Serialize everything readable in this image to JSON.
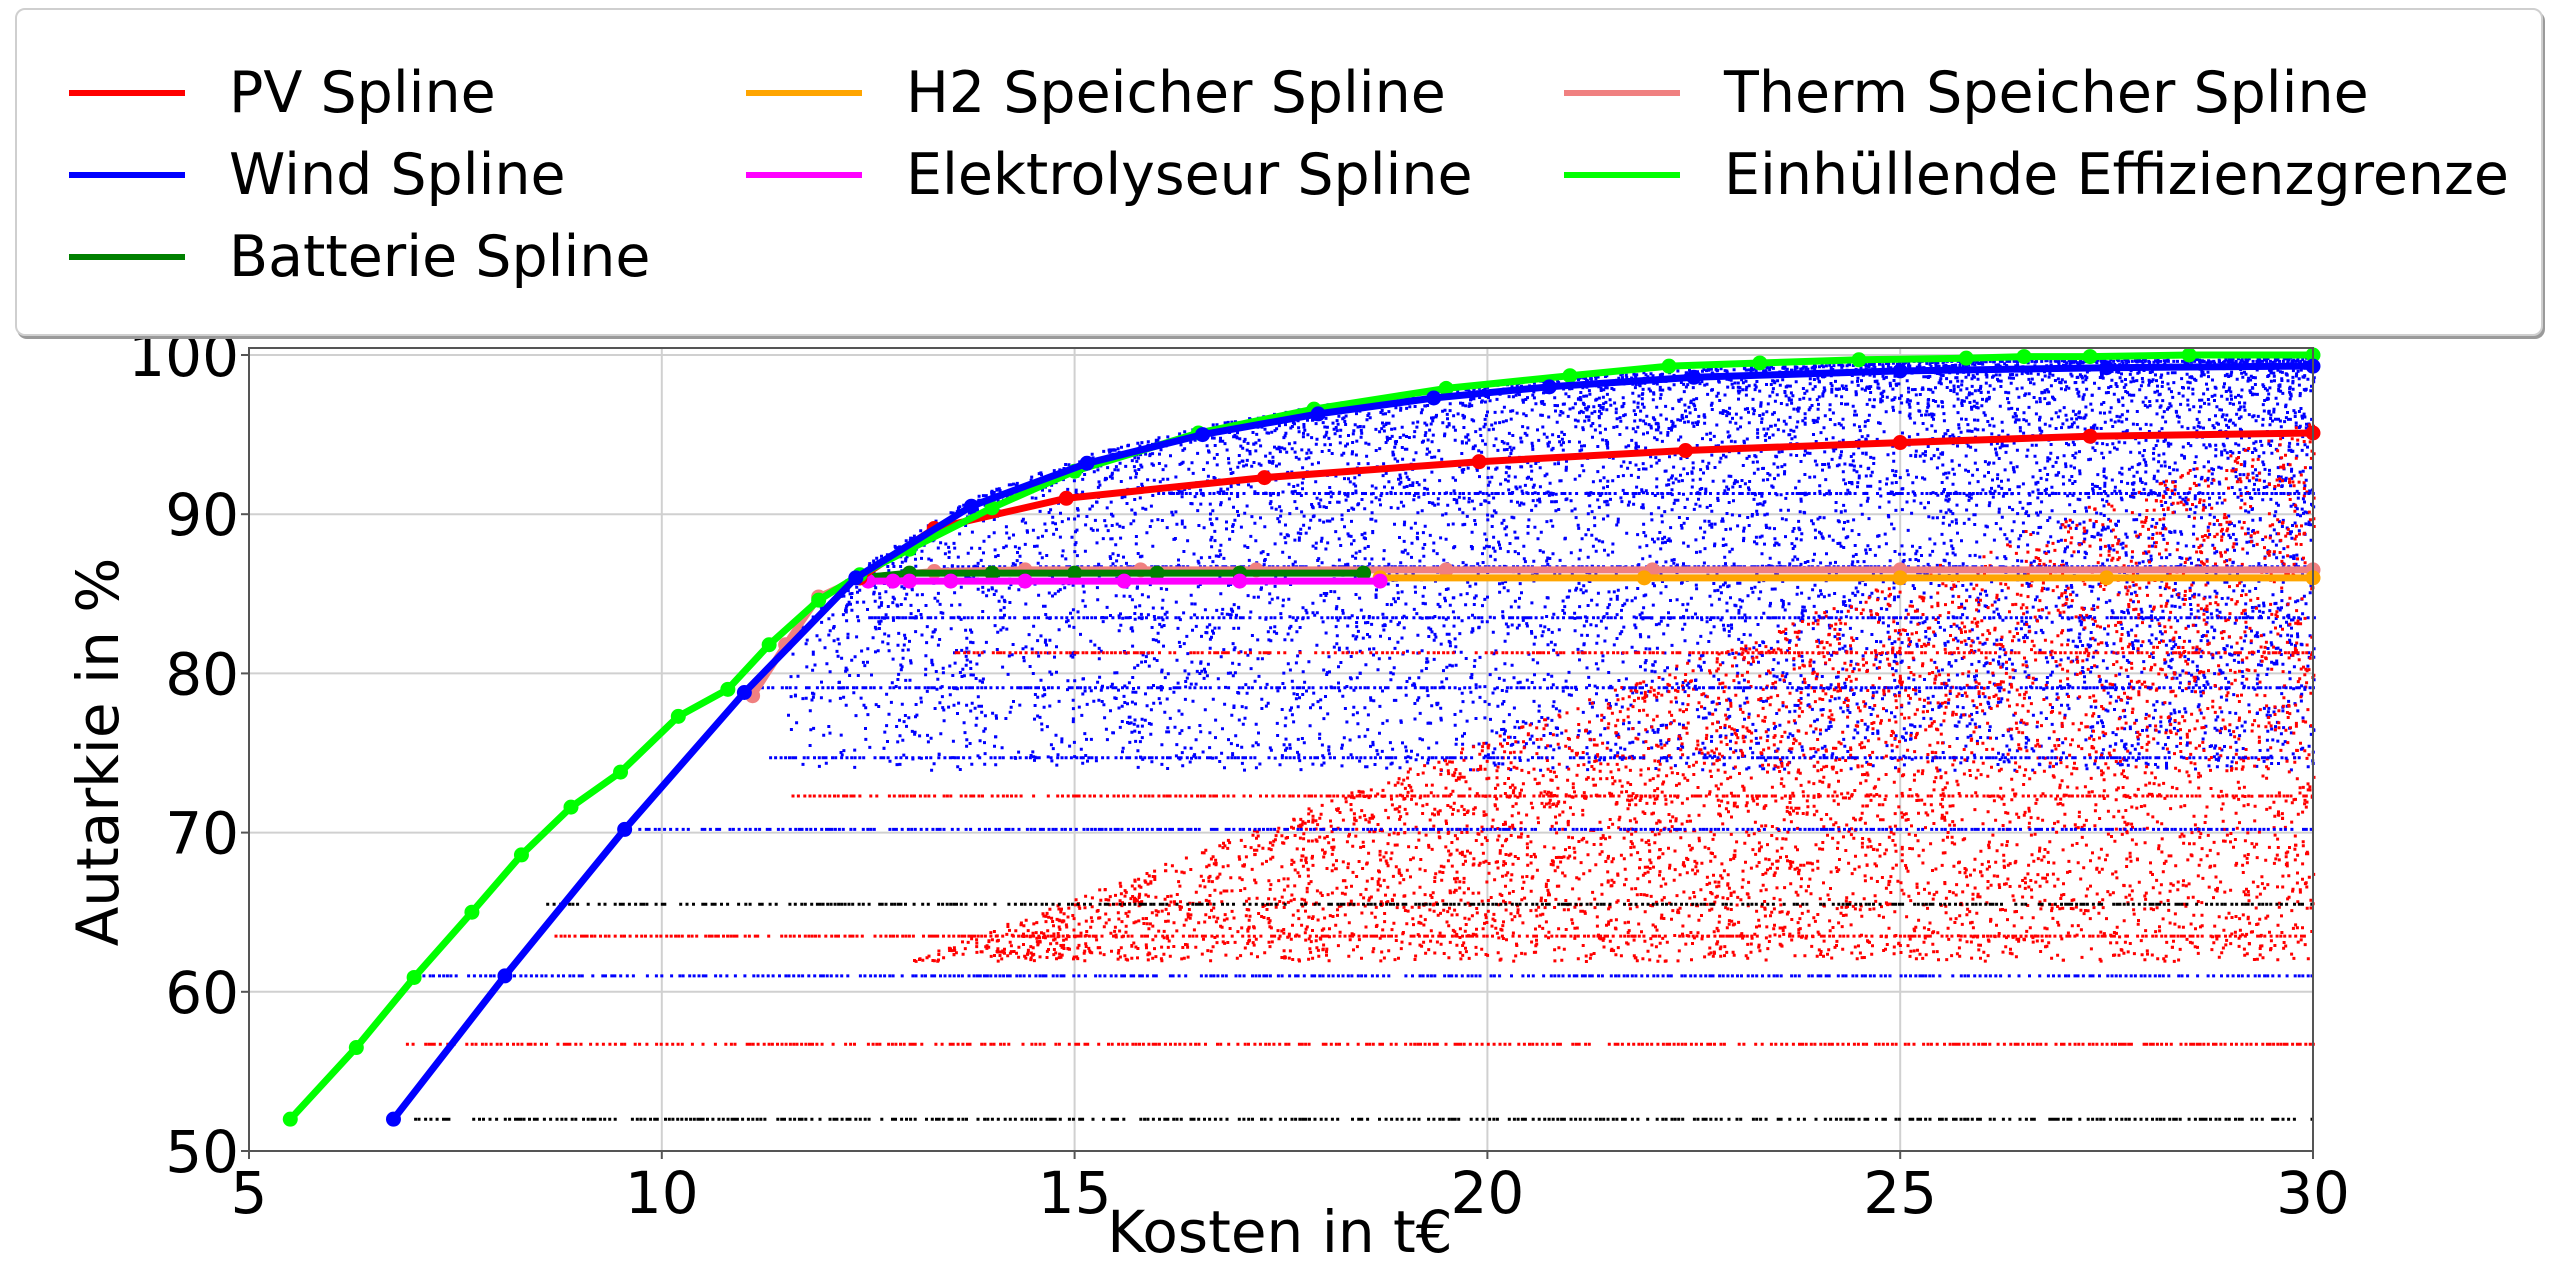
{
  "chart_data": {
    "type": "scatter",
    "title": "",
    "xlabel": "Kosten in t€",
    "ylabel": "Autarkie in %",
    "xlim": [
      5,
      30
    ],
    "ylim": [
      50,
      100
    ],
    "xticks": [
      5,
      10,
      15,
      20,
      25,
      30
    ],
    "yticks": [
      50,
      60,
      70,
      80,
      90,
      100
    ],
    "grid": true,
    "legend": {
      "placement": "top",
      "columns": 3,
      "entries": [
        {
          "label": "PV Spline",
          "color": "#ff0000"
        },
        {
          "label": "Wind Spline",
          "color": "#0000ff"
        },
        {
          "label": "Batterie Spline",
          "color": "#008000"
        },
        {
          "label": "H2 Speicher Spline",
          "color": "#ffa500"
        },
        {
          "label": "Elektrolyseur Spline",
          "color": "#ff00ff"
        },
        {
          "label": "Therm Speicher Spline",
          "color": "#f08080"
        },
        {
          "label": "Einhüllende Effizienzgrenze",
          "color": "#00ff00"
        }
      ]
    },
    "series": [
      {
        "name": "Einhüllende Effizienzgrenze",
        "color": "#00ff00",
        "x": [
          5.5,
          6.3,
          7.0,
          7.7,
          8.3,
          8.9,
          9.5,
          10.2,
          10.8,
          11.3,
          11.9,
          12.4,
          13.0,
          14.0,
          15.0,
          16.5,
          17.9,
          19.5,
          21.0,
          22.2,
          23.3,
          24.5,
          25.8,
          26.5,
          27.3,
          28.5,
          30.0
        ],
        "y": [
          52.0,
          56.5,
          60.9,
          65.0,
          68.6,
          71.6,
          73.8,
          77.3,
          79.0,
          81.8,
          84.6,
          86.2,
          87.8,
          90.4,
          92.7,
          95.1,
          96.6,
          97.9,
          98.7,
          99.3,
          99.5,
          99.7,
          99.8,
          99.9,
          99.9,
          100.0,
          100.0
        ]
      },
      {
        "name": "Wind Spline",
        "color": "#0000ff",
        "x": [
          6.75,
          8.1,
          9.55,
          11.0,
          12.35,
          13.75,
          15.15,
          16.55,
          17.95,
          19.35,
          20.75,
          22.5,
          25.0,
          27.5,
          30.0
        ],
        "y": [
          52.0,
          61.0,
          70.2,
          78.8,
          86.0,
          90.5,
          93.2,
          95.0,
          96.3,
          97.3,
          98.0,
          98.6,
          99.0,
          99.2,
          99.3
        ]
      },
      {
        "name": "PV Spline",
        "color": "#ff0000",
        "x": [
          12.4,
          13.3,
          14.9,
          17.3,
          19.9,
          22.4,
          25.0,
          27.3,
          30.0
        ],
        "y": [
          86.0,
          89.1,
          91.0,
          92.3,
          93.3,
          94.0,
          94.5,
          94.9,
          95.1
        ]
      },
      {
        "name": "Batterie Spline",
        "color": "#008000",
        "x": [
          12.4,
          13.0,
          14.0,
          15.0,
          16.0,
          17.0,
          18.5
        ],
        "y": [
          86.0,
          86.3,
          86.3,
          86.3,
          86.3,
          86.3,
          86.3
        ]
      },
      {
        "name": "H2 Speicher Spline",
        "color": "#ffa500",
        "x": [
          18.7,
          21.9,
          25.0,
          27.5,
          30.0
        ],
        "y": [
          86.0,
          86.0,
          86.0,
          86.0,
          86.0
        ]
      },
      {
        "name": "Elektrolyseur Spline",
        "color": "#ff00ff",
        "x": [
          12.5,
          12.8,
          13.0,
          13.5,
          14.4,
          15.6,
          17.0,
          18.7
        ],
        "y": [
          85.8,
          85.8,
          85.8,
          85.8,
          85.8,
          85.8,
          85.8,
          85.8
        ]
      },
      {
        "name": "Therm Speicher Spline",
        "color": "#f08080",
        "x": [
          11.1,
          11.5,
          11.9,
          12.4,
          13.3,
          14.4,
          15.8,
          17.2,
          19.5,
          22.0,
          25.0,
          30.0
        ],
        "y": [
          78.6,
          81.8,
          84.8,
          86.0,
          86.4,
          86.5,
          86.5,
          86.5,
          86.5,
          86.5,
          86.5,
          86.5
        ]
      }
    ],
    "scatter_bands": [
      {
        "color": "#000000",
        "y": 52.0,
        "x_start": 7.0
      },
      {
        "color": "#ff0000",
        "y": 56.7,
        "x_start": 6.9
      },
      {
        "color": "#0000ff",
        "y": 61.0,
        "x_start": 7.1
      },
      {
        "color": "#ff0000",
        "y": 63.5,
        "x_start": 8.7
      },
      {
        "color": "#000000",
        "y": 65.5,
        "x_start": 8.6
      },
      {
        "color": "#0000ff",
        "y": 70.2,
        "x_start": 9.6
      },
      {
        "color": "#ff0000",
        "y": 72.3,
        "x_start": 11.5
      },
      {
        "color": "#0000ff",
        "y": 74.7,
        "x_start": 11.3
      },
      {
        "color": "#0000ff",
        "y": 79.1,
        "x_start": 11.2
      },
      {
        "color": "#ff0000",
        "y": 81.3,
        "x_start": 13.5
      },
      {
        "color": "#0000ff",
        "y": 83.5,
        "x_start": 12.5
      },
      {
        "color": "#0000ff",
        "y": 86.7,
        "x_start": 13.5
      },
      {
        "color": "#0000ff",
        "y": 91.3,
        "x_start": 16.0
      },
      {
        "color": "#0000ff",
        "y": 99.6,
        "x_start": 24.0
      }
    ]
  }
}
